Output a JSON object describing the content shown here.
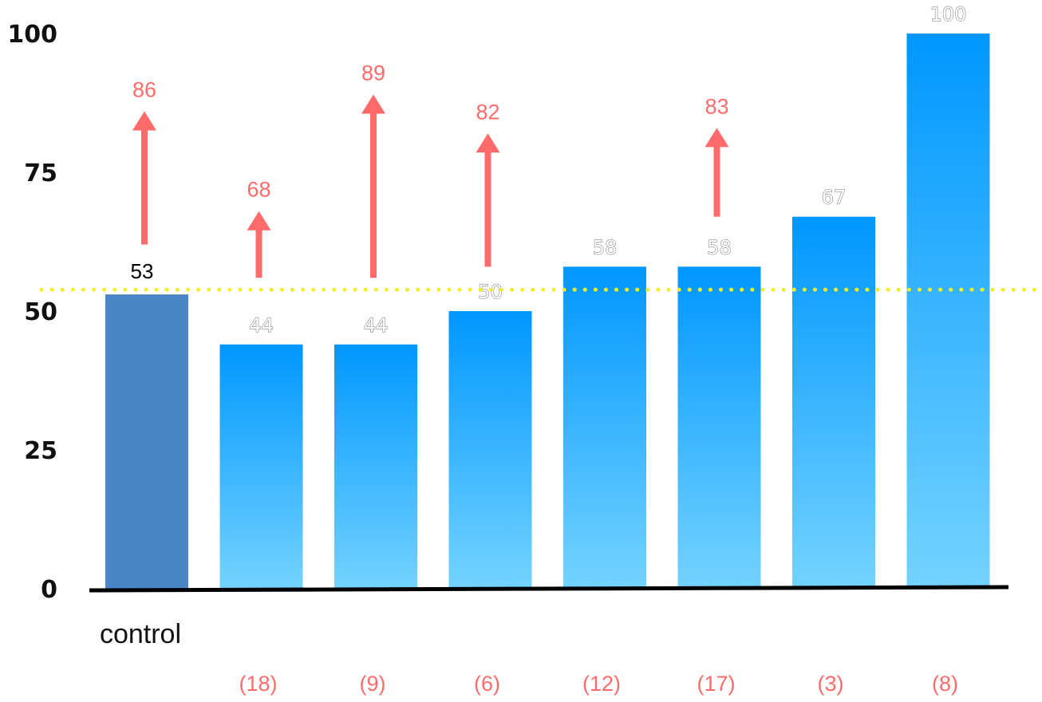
{
  "chart_data": {
    "type": "bar",
    "title": "",
    "xlabel": "",
    "ylabel": "",
    "ylim": [
      0,
      100
    ],
    "yticks": [
      0,
      25,
      50,
      75,
      100
    ],
    "grid": false,
    "reference_line": {
      "value": 53,
      "style": "dotted",
      "color": "#f2ef2a"
    },
    "categories": [
      "control",
      "",
      "",
      "",
      "",
      "",
      "",
      ""
    ],
    "values": [
      53,
      44,
      44,
      50,
      58,
      58,
      67,
      100
    ],
    "value_labels": [
      "53",
      "44",
      "44",
      "50",
      "58",
      "58",
      "67",
      "100"
    ],
    "count_labels": [
      "",
      "(18)",
      "(9)",
      "(6)",
      "(12)",
      "(17)",
      "(3)",
      "(8)"
    ],
    "arrows": [
      {
        "bar_index": 0,
        "from": 62,
        "to": 86,
        "label": "86"
      },
      {
        "bar_index": 1,
        "from": 56,
        "to": 68,
        "label": "68"
      },
      {
        "bar_index": 2,
        "from": 56,
        "to": 89,
        "label": "89"
      },
      {
        "bar_index": 3,
        "from": 58,
        "to": 82,
        "label": "82"
      },
      {
        "bar_index": 5,
        "from": 67,
        "to": 83,
        "label": "83"
      }
    ],
    "colors": {
      "control_bar": "#4a86c5",
      "bar_top": "#0097ff",
      "bar_bottom": "#74d3ff",
      "arrow": "#ff6b6b",
      "axis": "#000000"
    }
  }
}
